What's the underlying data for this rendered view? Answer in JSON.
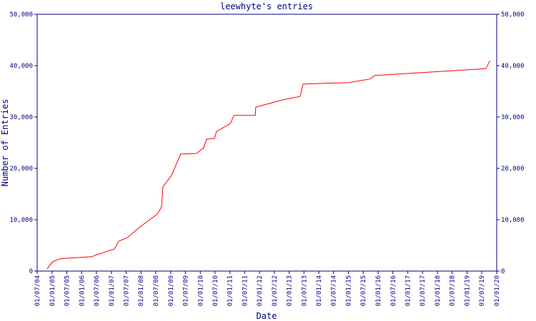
{
  "chart_data": {
    "type": "line",
    "title": "leewhyte's entries",
    "x_label": "Date",
    "y_label": "Number of Entries",
    "color": "#ff0000",
    "axis_color": "#000080",
    "x": [
      "2004-11-01",
      "2005-01-01",
      "2005-02-01",
      "2005-04-15",
      "2005-07-01",
      "2006-05-15",
      "2006-06-01",
      "2007-02-10",
      "2007-04-01",
      "2007-07-15",
      "2007-12-20",
      "2008-07-20",
      "2008-09-10",
      "2008-09-28",
      "2009-01-10",
      "2009-05-05",
      "2009-07-05",
      "2009-11-15",
      "2010-02-12",
      "2010-03-20",
      "2010-06-25",
      "2010-07-20",
      "2011-01-05",
      "2011-02-20",
      "2011-11-10",
      "2011-11-15",
      "2012-10-05",
      "2013-05-15",
      "2013-06-20",
      "2013-11-10",
      "2015-01-05",
      "2015-09-25",
      "2015-11-20",
      "2019-08-20",
      "2019-10-10"
    ],
    "values": [
      400,
      1700,
      2000,
      2400,
      2500,
      2800,
      3000,
      4300,
      5800,
      6500,
      8600,
      11100,
      12500,
      16400,
      18600,
      22800,
      22800,
      22900,
      24000,
      25700,
      25800,
      27200,
      28700,
      30300,
      30300,
      31900,
      33300,
      34000,
      36400,
      36500,
      36700,
      37400,
      38100,
      39400,
      41000
    ],
    "xlim": [
      "2004-07-01",
      "2020-01-01"
    ],
    "xticks": [
      {
        "value": "2004-07-01",
        "label": "01/07/04"
      },
      {
        "value": "2005-01-01",
        "label": "01/01/05"
      },
      {
        "value": "2005-07-01",
        "label": "01/07/05"
      },
      {
        "value": "2006-01-01",
        "label": "01/01/06"
      },
      {
        "value": "2006-07-01",
        "label": "01/07/06"
      },
      {
        "value": "2007-01-01",
        "label": "01/01/07"
      },
      {
        "value": "2007-07-01",
        "label": "01/07/07"
      },
      {
        "value": "2008-01-01",
        "label": "01/01/08"
      },
      {
        "value": "2008-07-01",
        "label": "01/07/08"
      },
      {
        "value": "2009-01-01",
        "label": "01/01/09"
      },
      {
        "value": "2009-07-01",
        "label": "01/07/09"
      },
      {
        "value": "2010-01-01",
        "label": "01/01/10"
      },
      {
        "value": "2010-07-01",
        "label": "01/07/10"
      },
      {
        "value": "2011-01-01",
        "label": "01/01/11"
      },
      {
        "value": "2011-07-01",
        "label": "01/07/11"
      },
      {
        "value": "2012-01-01",
        "label": "01/01/12"
      },
      {
        "value": "2012-07-01",
        "label": "01/07/12"
      },
      {
        "value": "2013-01-01",
        "label": "01/01/13"
      },
      {
        "value": "2013-07-01",
        "label": "01/07/13"
      },
      {
        "value": "2014-01-01",
        "label": "01/01/14"
      },
      {
        "value": "2014-07-01",
        "label": "01/07/14"
      },
      {
        "value": "2015-01-01",
        "label": "01/01/15"
      },
      {
        "value": "2015-07-01",
        "label": "01/07/15"
      },
      {
        "value": "2016-01-01",
        "label": "01/01/16"
      },
      {
        "value": "2016-07-01",
        "label": "01/07/16"
      },
      {
        "value": "2017-01-01",
        "label": "01/01/17"
      },
      {
        "value": "2017-07-01",
        "label": "01/07/17"
      },
      {
        "value": "2018-01-01",
        "label": "01/01/18"
      },
      {
        "value": "2018-07-01",
        "label": "01/07/18"
      },
      {
        "value": "2019-01-01",
        "label": "01/01/19"
      },
      {
        "value": "2019-07-01",
        "label": "01/07/19"
      },
      {
        "value": "2020-01-01",
        "label": "01/01/20"
      }
    ],
    "ylim": [
      0,
      50000
    ],
    "yticks": [
      0,
      {
        "value": 10000,
        "label": "10,000"
      },
      {
        "value": 20000,
        "label": "20,000"
      },
      {
        "value": 30000,
        "label": "30,000"
      },
      {
        "value": 40000,
        "label": "40,000"
      },
      {
        "value": 50000,
        "label": "50,000"
      }
    ],
    "y2lim": [
      0,
      50000
    ],
    "y2ticks": [
      0,
      {
        "value": 10000,
        "label": "10,000"
      },
      {
        "value": 20000,
        "label": "20,000"
      },
      {
        "value": 30000,
        "label": "30,000"
      },
      {
        "value": 40000,
        "label": "40,000"
      },
      {
        "value": 50000,
        "label": "50,000"
      }
    ]
  }
}
